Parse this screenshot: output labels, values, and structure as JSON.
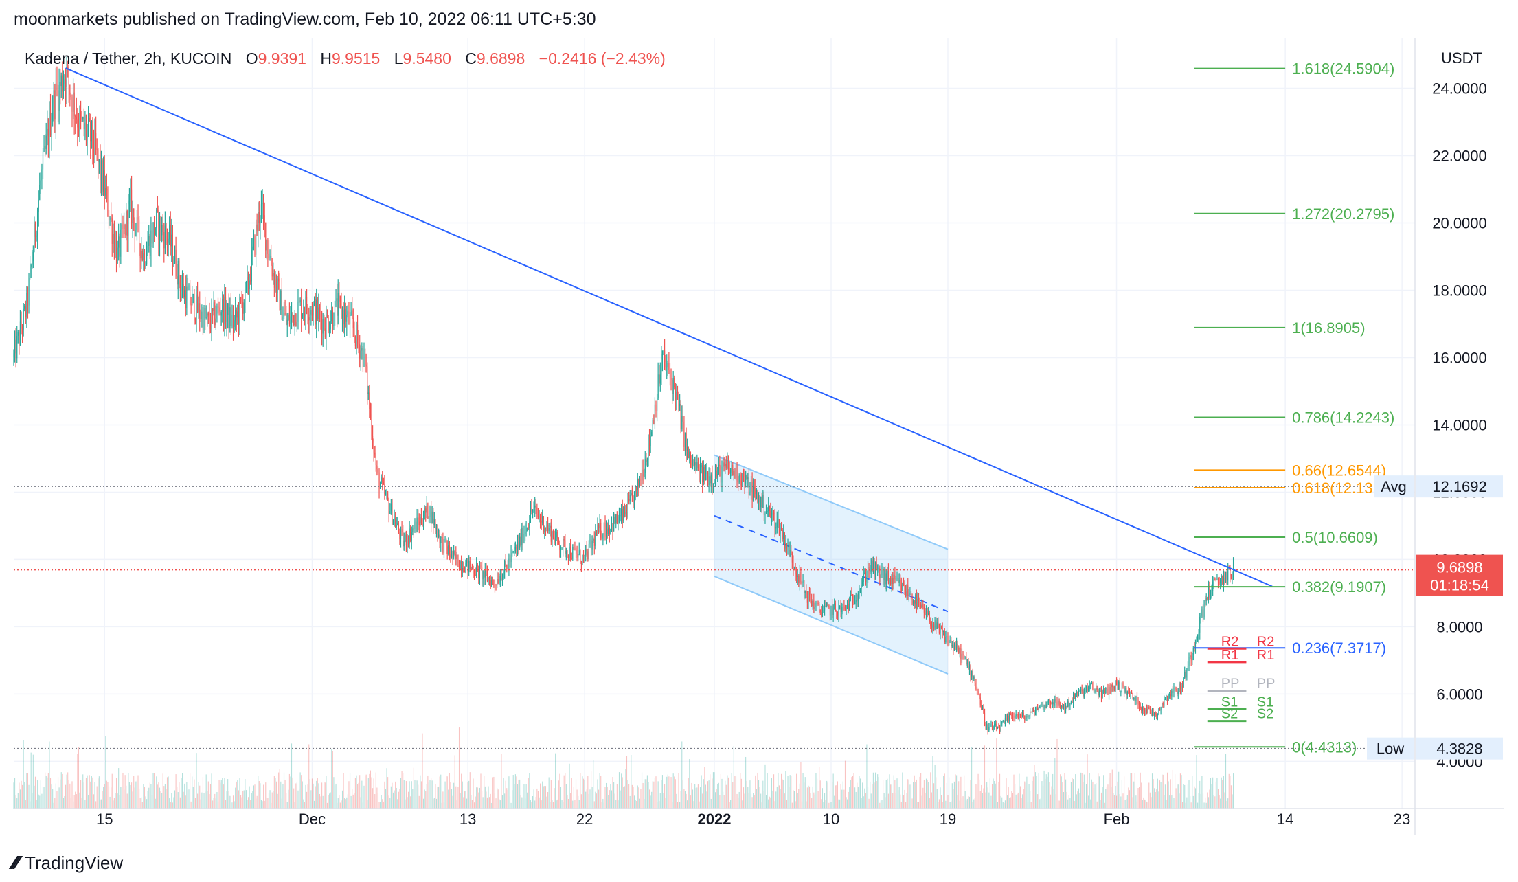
{
  "header": {
    "attribution": "moonmarkets published on TradingView.com, Feb 10, 2022 06:11 UTC+5:30"
  },
  "legend": {
    "symbol": "Kadena / Tether, 2h, KUCOIN",
    "open_label": "O",
    "open": "9.9391",
    "high_label": "H",
    "high": "9.9515",
    "low_label": "L",
    "low": "9.5480",
    "close_label": "C",
    "close": "9.6898",
    "change": "−0.2416 (−2.43%)"
  },
  "footer": {
    "brand": "TradingView"
  },
  "colors": {
    "up": "#26a69a",
    "down": "#ef5350",
    "trendline": "#2962ff",
    "fib_green": "#4caf50",
    "fib_orange": "#ff9800",
    "fib_blue": "#2962ff",
    "channel": "#90caf9",
    "grid": "#f0f3fa",
    "pivot_red": "#f23645",
    "pivot_gray": "#b2b5be"
  },
  "chart_data": {
    "type": "candlestick",
    "currency": "USDT",
    "y_axis_ticks": [
      "4.0000",
      "6.0000",
      "8.0000",
      "10.0000",
      "12.0000",
      "14.0000",
      "16.0000",
      "18.0000",
      "20.0000",
      "22.0000",
      "24.0000"
    ],
    "ylim": [
      2.6,
      25.5
    ],
    "x_axis_ticks": [
      {
        "label": "15",
        "date": "2021-11-15"
      },
      {
        "label": "Dec",
        "date": "2021-12-01"
      },
      {
        "label": "13",
        "date": "2021-12-13"
      },
      {
        "label": "22",
        "date": "2021-12-22"
      },
      {
        "label": "2022",
        "date": "2022-01-01",
        "bold": true
      },
      {
        "label": "10",
        "date": "2022-01-10"
      },
      {
        "label": "19",
        "date": "2022-01-19"
      },
      {
        "label": "Feb",
        "date": "2022-02-01"
      },
      {
        "label": "14",
        "date": "2022-02-14"
      },
      {
        "label": "23",
        "date": "2022-02-23"
      }
    ],
    "x_range": [
      "2021-11-08",
      "2022-02-24"
    ],
    "price_path": [
      [
        "2021-11-08",
        16.0
      ],
      [
        "2021-11-09",
        17.5
      ],
      [
        "2021-11-10",
        21.0
      ],
      [
        "2021-11-11",
        23.5
      ],
      [
        "2021-11-12",
        24.5
      ],
      [
        "2021-11-13",
        23.0
      ],
      [
        "2021-11-14",
        22.5
      ],
      [
        "2021-11-15",
        21.0
      ],
      [
        "2021-11-16",
        19.0
      ],
      [
        "2021-11-17",
        20.5
      ],
      [
        "2021-11-18",
        19.0
      ],
      [
        "2021-11-19",
        20.0
      ],
      [
        "2021-11-20",
        19.5
      ],
      [
        "2021-11-21",
        18.0
      ],
      [
        "2021-11-22",
        17.5
      ],
      [
        "2021-11-23",
        17.0
      ],
      [
        "2021-11-24",
        17.5
      ],
      [
        "2021-11-25",
        17.0
      ],
      [
        "2021-11-26",
        18.0
      ],
      [
        "2021-11-27",
        20.5
      ],
      [
        "2021-11-28",
        18.5
      ],
      [
        "2021-11-29",
        17.0
      ],
      [
        "2021-11-30",
        17.5
      ],
      [
        "2021-12-01",
        17.5
      ],
      [
        "2021-12-02",
        17.0
      ],
      [
        "2021-12-03",
        17.5
      ],
      [
        "2021-12-04",
        17.0
      ],
      [
        "2021-12-05",
        16.0
      ],
      [
        "2021-12-06",
        12.5
      ],
      [
        "2021-12-07",
        11.5
      ],
      [
        "2021-12-08",
        10.5
      ],
      [
        "2021-12-09",
        11.0
      ],
      [
        "2021-12-10",
        11.5
      ],
      [
        "2021-12-11",
        10.5
      ],
      [
        "2021-12-12",
        10.0
      ],
      [
        "2021-12-13",
        9.8
      ],
      [
        "2021-12-14",
        9.6
      ],
      [
        "2021-12-15",
        9.3
      ],
      [
        "2021-12-16",
        9.8
      ],
      [
        "2021-12-17",
        10.5
      ],
      [
        "2021-12-18",
        11.5
      ],
      [
        "2021-12-19",
        11.0
      ],
      [
        "2021-12-20",
        10.5
      ],
      [
        "2021-12-21",
        10.2
      ],
      [
        "2021-12-22",
        10.0
      ],
      [
        "2021-12-23",
        10.8
      ],
      [
        "2021-12-24",
        11.0
      ],
      [
        "2021-12-25",
        11.3
      ],
      [
        "2021-12-26",
        12.0
      ],
      [
        "2021-12-27",
        13.5
      ],
      [
        "2021-12-28",
        16.0
      ],
      [
        "2021-12-29",
        15.0
      ],
      [
        "2021-12-30",
        13.0
      ],
      [
        "2021-12-31",
        12.5
      ],
      [
        "2022-01-01",
        12.5
      ],
      [
        "2022-01-02",
        12.7
      ],
      [
        "2022-01-03",
        12.5
      ],
      [
        "2022-01-04",
        12.0
      ],
      [
        "2022-01-05",
        11.5
      ],
      [
        "2022-01-06",
        11.0
      ],
      [
        "2022-01-07",
        10.0
      ],
      [
        "2022-01-08",
        9.0
      ],
      [
        "2022-01-09",
        8.5
      ],
      [
        "2022-01-10",
        8.5
      ],
      [
        "2022-01-11",
        8.5
      ],
      [
        "2022-01-12",
        9.0
      ],
      [
        "2022-01-13",
        9.8
      ],
      [
        "2022-01-14",
        9.5
      ],
      [
        "2022-01-15",
        9.3
      ],
      [
        "2022-01-16",
        9.0
      ],
      [
        "2022-01-17",
        8.5
      ],
      [
        "2022-01-18",
        8.0
      ],
      [
        "2022-01-19",
        7.6
      ],
      [
        "2022-01-20",
        7.2
      ],
      [
        "2022-01-21",
        6.5
      ],
      [
        "2022-01-22",
        5.0
      ],
      [
        "2022-01-23",
        5.0
      ],
      [
        "2022-01-24",
        5.4
      ],
      [
        "2022-01-25",
        5.3
      ],
      [
        "2022-01-26",
        5.6
      ],
      [
        "2022-01-27",
        5.8
      ],
      [
        "2022-01-28",
        5.6
      ],
      [
        "2022-01-29",
        6.0
      ],
      [
        "2022-01-30",
        6.2
      ],
      [
        "2022-01-31",
        6.0
      ],
      [
        "2022-02-01",
        6.3
      ],
      [
        "2022-02-02",
        6.0
      ],
      [
        "2022-02-03",
        5.6
      ],
      [
        "2022-02-04",
        5.4
      ],
      [
        "2022-02-05",
        6.0
      ],
      [
        "2022-02-06",
        6.2
      ],
      [
        "2022-02-07",
        7.5
      ],
      [
        "2022-02-08",
        9.0
      ],
      [
        "2022-02-09",
        9.4
      ],
      [
        "2022-02-10",
        9.69
      ]
    ],
    "last_price": "9.6898",
    "countdown": "01:18:54",
    "avg_label": "Avg",
    "avg_value": "12.1692",
    "avg_price": 12.1692,
    "low_label": "Low",
    "low_value": "4.3828",
    "low_price": 4.3828,
    "trendline": [
      [
        "2021-11-12",
        24.6
      ],
      [
        "2022-02-13",
        9.2
      ]
    ],
    "channel": {
      "start": "2022-01-01",
      "end": "2022-01-19",
      "upper": [
        13.1,
        10.3
      ],
      "lower": [
        9.5,
        6.6
      ],
      "mid": [
        11.3,
        8.45
      ]
    },
    "fib_retracement": {
      "start": "2022-02-07",
      "end": "2022-02-14",
      "levels": [
        {
          "label": "1.618(24.5904)",
          "price": 24.5904,
          "color": "#4caf50"
        },
        {
          "label": "1.272(20.2795)",
          "price": 20.2795,
          "color": "#4caf50"
        },
        {
          "label": "1(16.8905)",
          "price": 16.8905,
          "color": "#4caf50"
        },
        {
          "label": "0.786(14.2243)",
          "price": 14.2243,
          "color": "#4caf50"
        },
        {
          "label": "0.66(12.6544)",
          "price": 12.6544,
          "color": "#ff9800"
        },
        {
          "label": "0.618(12.1311)",
          "price": 12.1311,
          "color": "#ff9800"
        },
        {
          "label": "0.5(10.6609)",
          "price": 10.6609,
          "color": "#4caf50"
        },
        {
          "label": "0.382(9.1907)",
          "price": 9.1907,
          "color": "#4caf50"
        },
        {
          "label": "0.236(7.3717)",
          "price": 7.3717,
          "color": "#2962ff"
        },
        {
          "label": "0(4.4313)",
          "price": 4.4313,
          "color": "#4caf50"
        }
      ]
    },
    "pivots": [
      {
        "label": "R2",
        "price": 7.35,
        "color": "#f23645"
      },
      {
        "label": "R1",
        "price": 6.95,
        "color": "#f23645"
      },
      {
        "label": "PP",
        "price": 6.1,
        "color": "#b2b5be"
      },
      {
        "label": "S1",
        "price": 5.55,
        "color": "#4caf50"
      },
      {
        "label": "S2",
        "price": 5.2,
        "color": "#4caf50"
      }
    ]
  }
}
